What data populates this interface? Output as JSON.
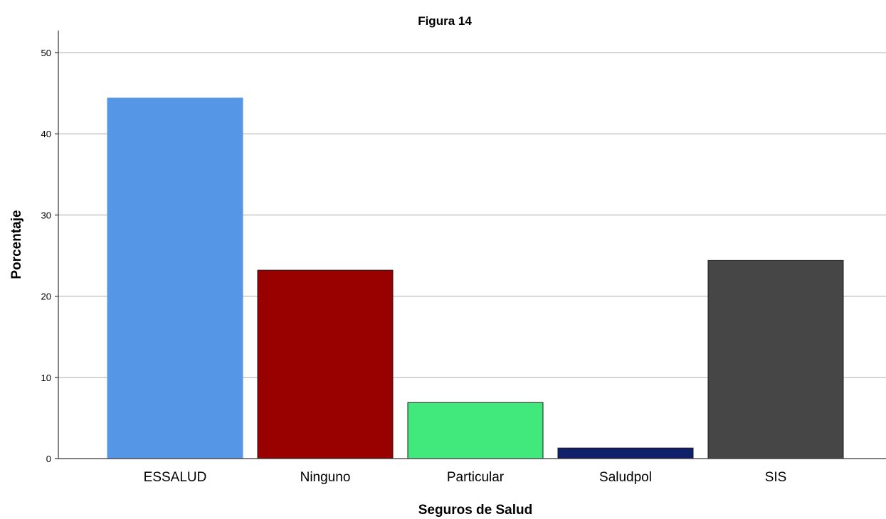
{
  "chart_data": {
    "type": "bar",
    "title": "Figura 14",
    "xlabel": "Seguros de Salud",
    "ylabel": "Porcentaje",
    "categories": [
      "ESSALUD",
      "Ninguno",
      "Particular",
      "Saludpol",
      "SIS"
    ],
    "values": [
      44.4,
      23.2,
      6.9,
      1.3,
      24.4
    ],
    "colors": [
      "#5596e6",
      "#990000",
      "#41e97d",
      "#10206a",
      "#464646"
    ],
    "ylim": [
      0,
      52
    ],
    "yticks": [
      "0",
      "10",
      "20",
      "30",
      "40",
      "50"
    ],
    "grid": true
  }
}
